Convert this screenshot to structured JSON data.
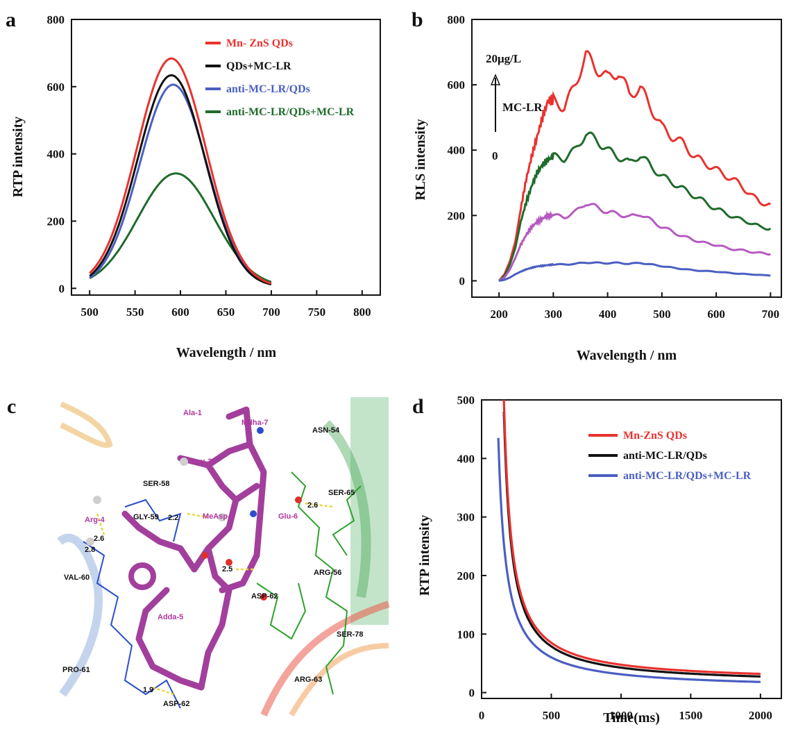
{
  "panels": {
    "a": "a",
    "b": "b",
    "c": "c",
    "d": "d"
  },
  "colors": {
    "red": "#e8322e",
    "black": "#111111",
    "blue": "#4a5fc1",
    "green": "#1f6b2a",
    "purple": "#b55ac0",
    "molecule": "#a23f9c"
  },
  "chart_data": [
    {
      "id": "a",
      "type": "line",
      "xlabel": "Wavelength / nm",
      "ylabel": "RTP intensity",
      "xlim": [
        480,
        820
      ],
      "ylim": [
        -20,
        800
      ],
      "xticks": [
        500,
        550,
        600,
        650,
        700,
        750,
        800
      ],
      "yticks": [
        0,
        200,
        400,
        600,
        800
      ],
      "x_range": [
        500,
        700
      ],
      "legend_position": "top-right",
      "series": [
        {
          "name": "Mn- ZnS QDs",
          "color": "#e8322e",
          "peak_x": 590,
          "peak_y": 680,
          "base": 0,
          "sigma": 38
        },
        {
          "name": "QDs+MC-LR",
          "color": "#111111",
          "peak_x": 590,
          "peak_y": 630,
          "base": 0,
          "sigma": 37
        },
        {
          "name": "anti-MC-LR/QDs",
          "color": "#4a5fc1",
          "peak_x": 592,
          "peak_y": 602,
          "base": 0,
          "sigma": 37
        },
        {
          "name": "anti-MC-LR/QDs+MC-LR",
          "color": "#1f6b2a",
          "peak_x": 595,
          "peak_y": 338,
          "base": 0,
          "sigma": 42
        }
      ]
    },
    {
      "id": "b",
      "type": "line",
      "xlabel": "Wavelength / nm",
      "ylabel": "RLS intensity",
      "xlim": [
        150,
        720
      ],
      "ylim": [
        -50,
        800
      ],
      "xticks": [
        200,
        300,
        400,
        500,
        600,
        700
      ],
      "yticks": [
        0,
        200,
        400,
        600,
        800
      ],
      "annotation": {
        "top": "20μg/L",
        "middle": "MC-LR",
        "bottom": "0"
      },
      "x": [
        200,
        210,
        220,
        230,
        240,
        250,
        260,
        270,
        280,
        290,
        300,
        320,
        340,
        360,
        380,
        400,
        420,
        440,
        460,
        480,
        500,
        520,
        540,
        560,
        580,
        600,
        620,
        640,
        660,
        680,
        700
      ],
      "series": [
        {
          "color": "#e8322e",
          "values": [
            0,
            20,
            60,
            120,
            220,
            310,
            380,
            440,
            500,
            550,
            555,
            530,
            600,
            690,
            650,
            620,
            640,
            570,
            590,
            530,
            470,
            440,
            420,
            380,
            360,
            340,
            320,
            300,
            270,
            240,
            235
          ]
        },
        {
          "color": "#1f6b2a",
          "values": [
            0,
            15,
            50,
            100,
            180,
            240,
            290,
            330,
            355,
            370,
            380,
            375,
            400,
            450,
            430,
            400,
            380,
            360,
            385,
            350,
            320,
            300,
            280,
            260,
            240,
            220,
            205,
            190,
            180,
            165,
            160
          ]
        },
        {
          "color": "#b55ac0",
          "values": [
            0,
            10,
            35,
            70,
            110,
            140,
            165,
            180,
            190,
            200,
            200,
            195,
            210,
            238,
            225,
            210,
            205,
            195,
            205,
            185,
            165,
            150,
            135,
            125,
            115,
            110,
            100,
            95,
            90,
            85,
            82
          ]
        },
        {
          "color": "#4a5fc1",
          "values": [
            0,
            3,
            10,
            20,
            28,
            35,
            40,
            44,
            46,
            48,
            50,
            50,
            52,
            56,
            55,
            54,
            55,
            52,
            55,
            50,
            45,
            40,
            36,
            32,
            30,
            28,
            25,
            22,
            20,
            18,
            16
          ]
        }
      ]
    },
    {
      "id": "d",
      "type": "line",
      "xlabel": "Time(ms)",
      "ylabel": "RTP intensity",
      "xlim": [
        0,
        2150
      ],
      "ylim": [
        -10,
        500
      ],
      "xticks": [
        0,
        500,
        1000,
        1500,
        2000
      ],
      "yticks": [
        0,
        100,
        200,
        300,
        400,
        500
      ],
      "legend_position": "top-right",
      "series": [
        {
          "name": "Mn-ZnS QDs",
          "color": "#e8322e",
          "start_x": 160,
          "start_y": 500,
          "end_y": 18
        },
        {
          "name": "anti-MC-LR/QDs",
          "color": "#111111",
          "start_x": 160,
          "start_y": 480,
          "end_y": 14
        },
        {
          "name": "anti-MC-LR/QDs+MC-LR",
          "color": "#4a5fc1",
          "start_x": 120,
          "start_y": 435,
          "end_y": 6
        }
      ]
    }
  ],
  "molecule_panel": {
    "labels": [
      "Ala-1",
      "Mdha-7",
      "Leu-2",
      "SER-58",
      "GLY-59",
      "Arg-4",
      "MeAsp-3",
      "Glu-6",
      "ASN-54",
      "SER-65",
      "ARG-56",
      "VAL-60",
      "Adda-5",
      "ASP-62",
      "PRO-61",
      "SER-78",
      "ARG-63",
      "ASP-62"
    ],
    "distances": [
      "2.2",
      "2.8",
      "2.6",
      "2.5",
      "2.6",
      "1.9"
    ]
  }
}
